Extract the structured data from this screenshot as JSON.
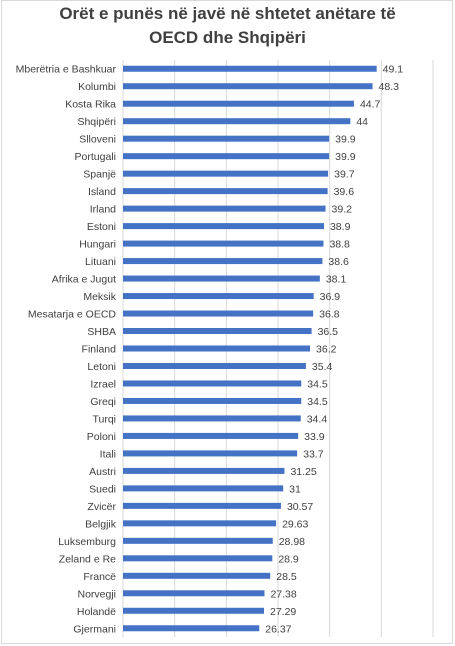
{
  "chart_data": {
    "type": "bar",
    "orientation": "horizontal",
    "title": "Orët e punës në javë në shtetet anëtare të OECD dhe Shqipëri",
    "title_lines": [
      "Orët e punës në javë në shtetet anëtare të",
      "OECD dhe Shqipëri"
    ],
    "categories": [
      "Mberëtria e Bashkuar",
      "Kolumbi",
      "Kosta Rika",
      "Shqipëri",
      "Slloveni",
      "Portugali",
      "Spanjë",
      "Island",
      "Irland",
      "Estoni",
      "Hungari",
      "Lituani",
      "Afrika e Jugut",
      "Meksik",
      "Mesatarja e OECD",
      "SHBA",
      "Finland",
      "Letoni",
      "Izrael",
      "Greqi",
      "Turqi",
      "Poloni",
      "Itali",
      "Austri",
      "Suedi",
      "Zvicër",
      "Belgjik",
      "Luksemburg",
      "Zeland e Re",
      "Francë",
      "Norvegji",
      "Holandë",
      "Gjermani"
    ],
    "values": [
      49.1,
      48.3,
      44.7,
      44,
      39.9,
      39.9,
      39.7,
      39.6,
      39.2,
      38.9,
      38.8,
      38.6,
      38.1,
      36.9,
      36.8,
      36.5,
      36.2,
      35.4,
      34.5,
      34.5,
      34.4,
      33.9,
      33.7,
      31.25,
      31,
      30.57,
      29.63,
      28.98,
      28.9,
      28.5,
      27.38,
      27.29,
      26.37
    ],
    "value_labels": [
      "49.1",
      "48.3",
      "44.7",
      "44",
      "39.9",
      "39.9",
      "39.7",
      "39.6",
      "39.2",
      "38.9",
      "38.8",
      "38.6",
      "38.1",
      "36.9",
      "36.8",
      "36.5",
      "36.2",
      "35.4",
      "34.5",
      "34.5",
      "34.4",
      "33.9",
      "33.7",
      "31.25",
      "31",
      "30.57",
      "29.63",
      "28.98",
      "28.9",
      "28.5",
      "27.38",
      "27.29",
      "26.37"
    ],
    "xlim": [
      0,
      60
    ],
    "grid": true,
    "bar_color": "#4472c4",
    "gridline_color": "#d9d9d9",
    "text_color": "#404040"
  }
}
